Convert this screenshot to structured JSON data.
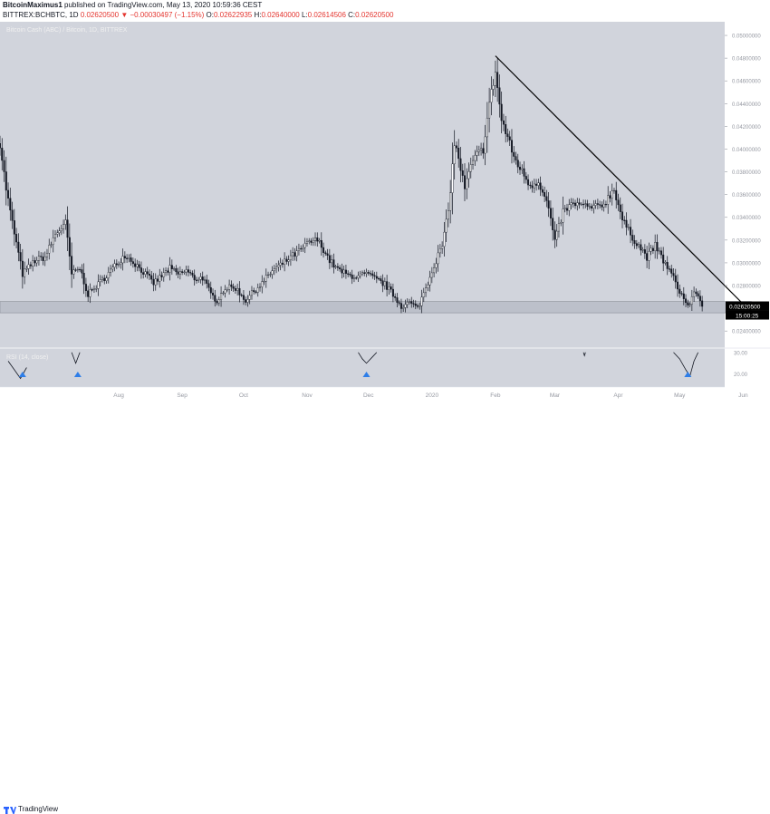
{
  "header": {
    "publisher": "BitcoinMaximus1",
    "published_text": "published on TradingView.com, May 13, 2020 10:59:36 CEST",
    "symbol": "BITTREX:BCHBTC, 1D",
    "last": "0.02620500",
    "change": "▼ −0.00030497 (−1.15%)",
    "open_label": "O:",
    "open": "0.02622935",
    "high_label": "H:",
    "high": "0.02640000",
    "low_label": "L:",
    "low": "0.02614506",
    "close_label": "C:",
    "close": "0.02620500"
  },
  "chart_title": "Bitcoin Cash (ABC) / Bitcoin, 1D, BITTREX",
  "rsi_label": "RSI (14, close)",
  "footer": {
    "brand": "TradingView"
  },
  "colors": {
    "background": "#d1d4dc",
    "candle": "#131722",
    "trendline": "#000000",
    "support_zone": "#bcc0ca",
    "rsi_line": "#131722",
    "arrow": "#2e7ee8"
  },
  "chart_data": {
    "type": "candlestick",
    "title": "Bitcoin Cash (ABC) / Bitcoin, 1D, BITTREX",
    "y_axis": {
      "ticks": [
        0.05,
        0.048,
        0.046,
        0.044,
        0.042,
        0.04,
        0.038,
        0.036,
        0.034,
        0.032,
        0.03,
        0.028,
        0.024
      ],
      "tick_labels": [
        "0.05000000",
        "0.04800000",
        "0.04600000",
        "0.04400000",
        "0.04200000",
        "0.04000000",
        "0.03800000",
        "0.03600000",
        "0.03400000",
        "0.03200000",
        "0.03000000",
        "0.02800000",
        "0.02400000"
      ],
      "range": [
        0.0225,
        0.0512
      ],
      "last_price_label": "0.02620500",
      "countdown_label": "15:00:25"
    },
    "x_axis": {
      "tick_labels": [
        "Aug",
        "Sep",
        "Oct",
        "Nov",
        "Dec",
        "2020",
        "Feb",
        "Mar",
        "Apr",
        "May",
        "Jun"
      ]
    },
    "x_range_days": [
      -27,
      327
    ],
    "month_ticks_day": [
      31,
      62,
      92,
      123,
      153,
      184,
      215,
      244,
      275,
      305,
      336
    ],
    "support_zone": {
      "low": 0.0256,
      "high": 0.0266
    },
    "trendline": {
      "start": {
        "day": 215,
        "price": 0.0482
      },
      "end": {
        "day": 340,
        "price": 0.02565
      }
    },
    "price_anchors": [
      [
        -27,
        0.0405
      ],
      [
        -24,
        0.0365
      ],
      [
        -21,
        0.0335
      ],
      [
        -16,
        0.029
      ],
      [
        -10,
        0.0302
      ],
      [
        -5,
        0.0305
      ],
      [
        0,
        0.0325
      ],
      [
        5,
        0.0335
      ],
      [
        8,
        0.029
      ],
      [
        12,
        0.0295
      ],
      [
        16,
        0.0272
      ],
      [
        22,
        0.0283
      ],
      [
        28,
        0.0295
      ],
      [
        34,
        0.0307
      ],
      [
        38,
        0.0301
      ],
      [
        43,
        0.0292
      ],
      [
        48,
        0.0282
      ],
      [
        53,
        0.029
      ],
      [
        56,
        0.0295
      ],
      [
        60,
        0.029
      ],
      [
        64,
        0.0293
      ],
      [
        68,
        0.0286
      ],
      [
        72,
        0.0287
      ],
      [
        76,
        0.0272
      ],
      [
        79,
        0.0267
      ],
      [
        83,
        0.0278
      ],
      [
        88,
        0.0278
      ],
      [
        93,
        0.0267
      ],
      [
        97,
        0.0275
      ],
      [
        101,
        0.0282
      ],
      [
        106,
        0.0293
      ],
      [
        111,
        0.0299
      ],
      [
        115,
        0.0305
      ],
      [
        119,
        0.031
      ],
      [
        124,
        0.0318
      ],
      [
        128,
        0.032
      ],
      [
        131,
        0.0312
      ],
      [
        134,
        0.0302
      ],
      [
        138,
        0.0294
      ],
      [
        143,
        0.0289
      ],
      [
        148,
        0.0288
      ],
      [
        152,
        0.029
      ],
      [
        157,
        0.0285
      ],
      [
        161,
        0.0281
      ],
      [
        165,
        0.0272
      ],
      [
        169,
        0.0262
      ],
      [
        173,
        0.0265
      ],
      [
        177,
        0.026
      ],
      [
        181,
        0.0278
      ],
      [
        185,
        0.0298
      ],
      [
        189,
        0.0315
      ],
      [
        192,
        0.0345
      ],
      [
        195,
        0.0405
      ],
      [
        197,
        0.0392
      ],
      [
        200,
        0.0365
      ],
      [
        203,
        0.0385
      ],
      [
        206,
        0.0395
      ],
      [
        209,
        0.04
      ],
      [
        212,
        0.044
      ],
      [
        215,
        0.0468
      ],
      [
        218,
        0.0425
      ],
      [
        221,
        0.041
      ],
      [
        224,
        0.0393
      ],
      [
        228,
        0.038
      ],
      [
        232,
        0.0368
      ],
      [
        236,
        0.0372
      ],
      [
        241,
        0.0348
      ],
      [
        244,
        0.0318
      ],
      [
        248,
        0.0345
      ],
      [
        253,
        0.0352
      ],
      [
        258,
        0.035
      ],
      [
        263,
        0.0348
      ],
      [
        268,
        0.0352
      ],
      [
        273,
        0.0365
      ],
      [
        277,
        0.0338
      ],
      [
        281,
        0.0325
      ],
      [
        285,
        0.0315
      ],
      [
        289,
        0.0305
      ],
      [
        293,
        0.0315
      ],
      [
        297,
        0.0302
      ],
      [
        301,
        0.029
      ],
      [
        305,
        0.0275
      ],
      [
        309,
        0.0262
      ],
      [
        313,
        0.0275
      ],
      [
        316,
        0.0262
      ]
    ],
    "rsi": {
      "label": "RSI (14, close)",
      "range": [
        14,
        32
      ],
      "ticks": [
        30,
        20
      ],
      "tick_labels": [
        "30.00",
        "20.00"
      ],
      "values": [
        [
          -27,
          30
        ],
        [
          -23,
          26
        ],
        [
          -20,
          22
        ],
        [
          -17,
          18
        ],
        [
          -14,
          23
        ],
        [
          -10,
          30
        ],
        [
          8,
          30
        ],
        [
          10,
          25
        ],
        [
          12,
          30
        ],
        [
          148,
          30
        ],
        [
          150,
          27
        ],
        [
          152,
          25
        ],
        [
          155,
          28
        ],
        [
          157,
          30
        ],
        [
          258,
          30
        ],
        [
          258.5,
          28.5
        ],
        [
          259,
          30
        ],
        [
          302,
          30
        ],
        [
          305,
          27
        ],
        [
          308,
          22
        ],
        [
          310,
          19
        ],
        [
          312,
          26
        ],
        [
          314,
          30
        ]
      ],
      "signal_days": [
        -16,
        11,
        152,
        309
      ]
    }
  }
}
